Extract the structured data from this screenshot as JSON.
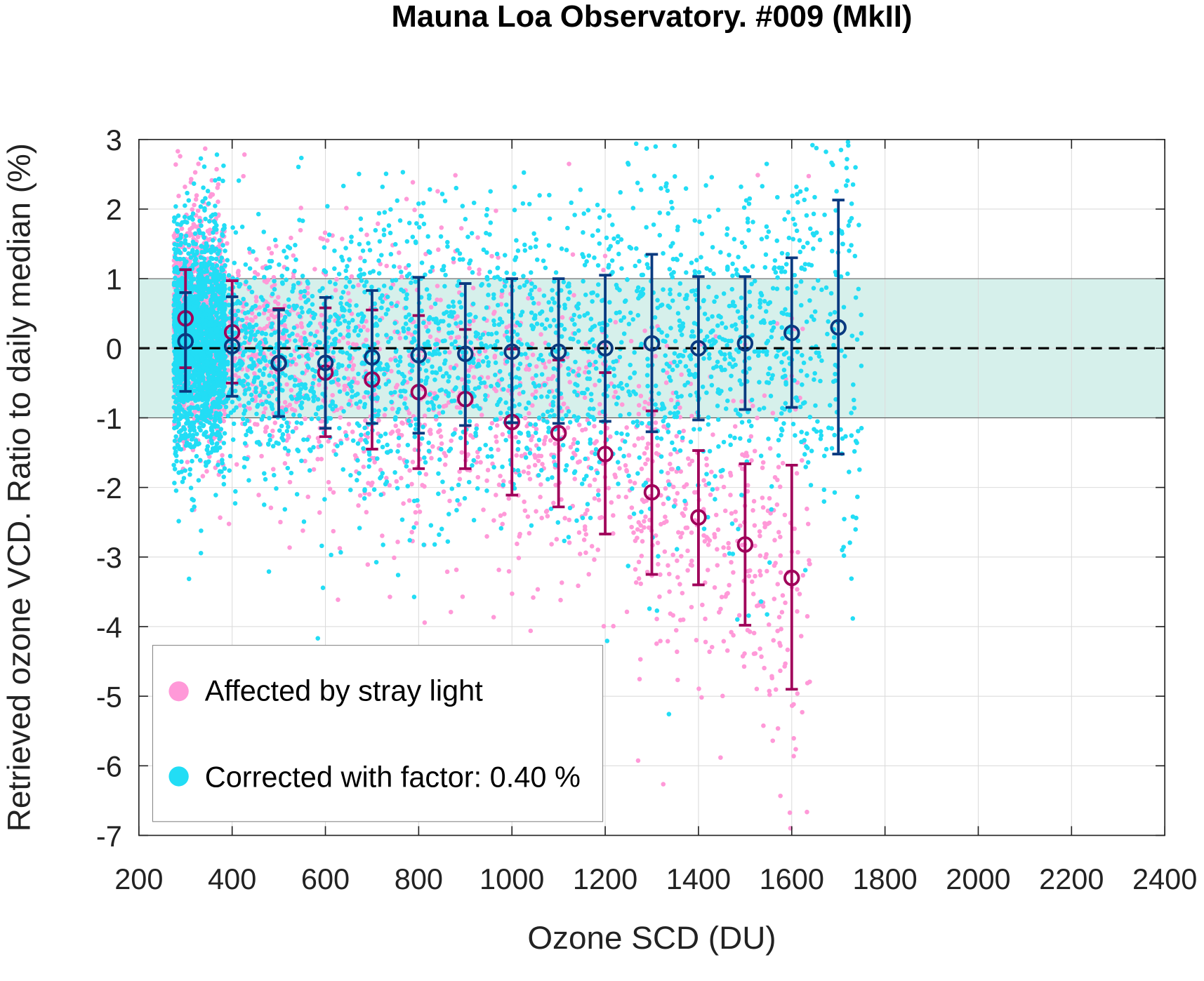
{
  "chart_data": {
    "type": "scatter",
    "title": "Mauna Loa Observatory. #009 (MkII)",
    "xlabel": "Ozone SCD (DU)",
    "ylabel": "Retrieved ozone VCD. Ratio to daily median (%)",
    "xlim": [
      200,
      2400
    ],
    "ylim": [
      -7,
      3
    ],
    "xticks": [
      200,
      400,
      600,
      800,
      1000,
      1200,
      1400,
      1600,
      1800,
      2000,
      2200,
      2400
    ],
    "yticks": [
      3,
      2,
      1,
      0,
      -1,
      -2,
      -3,
      -4,
      -5,
      -6,
      -7
    ],
    "grid": true,
    "reference_band": [
      -1,
      1
    ],
    "reference_line": 0,
    "legend_placement": "bottom-left",
    "colors": {
      "affected_points": "#ff99d8",
      "corrected_points": "#22ddf5",
      "affected_bins": "#a0005a",
      "corrected_bins": "#0a3a80",
      "band": "#d6f0eb"
    },
    "series": [
      {
        "name": "Affected by stray light",
        "bins": {
          "x": [
            300,
            400,
            500,
            600,
            700,
            800,
            900,
            1000,
            1100,
            1200,
            1300,
            1400,
            1500,
            1600
          ],
          "median": [
            0.43,
            0.23,
            -0.22,
            -0.35,
            -0.45,
            -0.63,
            -0.73,
            -1.06,
            -1.22,
            -1.52,
            -2.07,
            -2.43,
            -2.82,
            -3.3
          ],
          "lower": [
            -0.28,
            -0.5,
            -0.98,
            -1.27,
            -1.45,
            -1.73,
            -1.73,
            -2.11,
            -2.28,
            -2.67,
            -3.25,
            -3.4,
            -3.98,
            -4.9
          ],
          "upper": [
            1.13,
            0.97,
            0.57,
            0.58,
            0.55,
            0.47,
            0.27,
            -0.01,
            -0.17,
            -0.35,
            -0.9,
            -1.47,
            -1.66,
            -1.68
          ]
        }
      },
      {
        "name": "Corrected with factor: 0.40 %",
        "bins": {
          "x": [
            300,
            400,
            500,
            600,
            700,
            800,
            900,
            1000,
            1100,
            1200,
            1300,
            1400,
            1500,
            1600,
            1700
          ],
          "median": [
            0.1,
            0.03,
            -0.21,
            -0.21,
            -0.13,
            -0.1,
            -0.08,
            -0.05,
            -0.05,
            0.0,
            0.07,
            0.0,
            0.07,
            0.22,
            0.3
          ],
          "lower": [
            -0.62,
            -0.69,
            -0.98,
            -1.15,
            -1.08,
            -1.22,
            -1.11,
            -1.07,
            -1.08,
            -1.05,
            -1.2,
            -1.03,
            -0.88,
            -0.85,
            -1.52
          ],
          "upper": [
            0.8,
            0.74,
            0.55,
            0.73,
            0.83,
            1.02,
            0.93,
            1.0,
            1.0,
            1.05,
            1.35,
            1.03,
            1.03,
            1.3,
            2.13
          ]
        }
      }
    ]
  }
}
